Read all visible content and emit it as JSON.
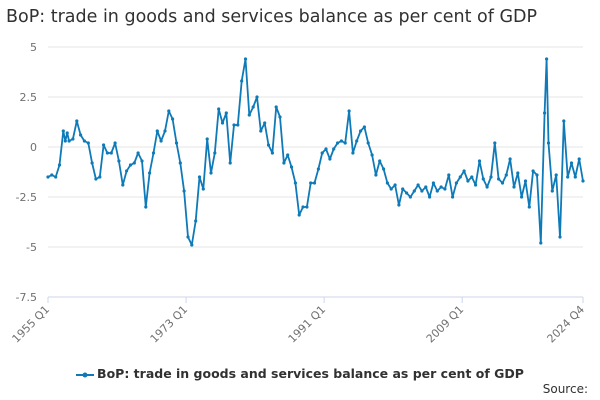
{
  "chart_data": {
    "type": "line",
    "title": "BoP: trade in goods and services balance as per cent of GDP",
    "xlabel": "",
    "ylabel": "",
    "ylim": [
      -7.5,
      5
    ],
    "yticks": [
      -7.5,
      -5,
      -2.5,
      0,
      2.5,
      5
    ],
    "ytick_labels": [
      "-7.5",
      "-5",
      "-2.5",
      "0",
      "2.5",
      "5"
    ],
    "x_start_quarter": "1955 Q1",
    "x_end_quarter": "2024 Q4",
    "xticks": [
      "1955 Q1",
      "1973 Q1",
      "1991 Q1",
      "2009 Q1",
      "2024 Q4"
    ],
    "grid": true,
    "legend_position": "bottom",
    "series": [
      {
        "name": "BoP: trade in goods and services balance as per cent of GDP",
        "color": "#0f7ab8",
        "anchors": [
          [
            "1955 Q1",
            -1.5
          ],
          [
            "1955 Q3",
            -1.4
          ],
          [
            "1956 Q1",
            -1.5
          ],
          [
            "1956 Q3",
            -0.9
          ],
          [
            "1957 Q1",
            0.8
          ],
          [
            "1957 Q2",
            0.3
          ],
          [
            "1957 Q3",
            0.7
          ],
          [
            "1957 Q4",
            0.3
          ],
          [
            "1958 Q2",
            0.4
          ],
          [
            "1958 Q4",
            1.3
          ],
          [
            "1959 Q2",
            0.6
          ],
          [
            "1959 Q4",
            0.3
          ],
          [
            "1960 Q2",
            0.2
          ],
          [
            "1960 Q4",
            -0.8
          ],
          [
            "1961 Q2",
            -1.6
          ],
          [
            "1961 Q4",
            -1.5
          ],
          [
            "1962 Q2",
            0.1
          ],
          [
            "1962 Q4",
            -0.3
          ],
          [
            "1963 Q2",
            -0.3
          ],
          [
            "1963 Q4",
            0.2
          ],
          [
            "1964 Q2",
            -0.7
          ],
          [
            "1964 Q4",
            -1.9
          ],
          [
            "1965 Q2",
            -1.2
          ],
          [
            "1965 Q4",
            -0.9
          ],
          [
            "1966 Q2",
            -0.8
          ],
          [
            "1966 Q4",
            -0.3
          ],
          [
            "1967 Q2",
            -0.7
          ],
          [
            "1967 Q4",
            -3.0
          ],
          [
            "1968 Q2",
            -1.3
          ],
          [
            "1968 Q4",
            -0.3
          ],
          [
            "1969 Q2",
            0.8
          ],
          [
            "1969 Q4",
            0.3
          ],
          [
            "1970 Q2",
            0.8
          ],
          [
            "1970 Q4",
            1.8
          ],
          [
            "1971 Q2",
            1.4
          ],
          [
            "1971 Q4",
            0.2
          ],
          [
            "1972 Q2",
            -0.8
          ],
          [
            "1972 Q4",
            -2.2
          ],
          [
            "1973 Q2",
            -4.5
          ],
          [
            "1973 Q4",
            -4.9
          ],
          [
            "1974 Q2",
            -3.7
          ],
          [
            "1974 Q4",
            -1.5
          ],
          [
            "1975 Q2",
            -2.1
          ],
          [
            "1975 Q4",
            0.4
          ],
          [
            "1976 Q2",
            -1.3
          ],
          [
            "1976 Q4",
            -0.3
          ],
          [
            "1977 Q2",
            1.9
          ],
          [
            "1977 Q4",
            1.2
          ],
          [
            "1978 Q2",
            1.7
          ],
          [
            "1978 Q4",
            -0.8
          ],
          [
            "1979 Q2",
            1.1
          ],
          [
            "1979 Q4",
            1.1
          ],
          [
            "1980 Q2",
            3.3
          ],
          [
            "1980 Q4",
            4.4
          ],
          [
            "1981 Q2",
            1.6
          ],
          [
            "1981 Q4",
            2.0
          ],
          [
            "1982 Q2",
            2.5
          ],
          [
            "1982 Q4",
            0.8
          ],
          [
            "1983 Q2",
            1.2
          ],
          [
            "1983 Q4",
            0.1
          ],
          [
            "1984 Q2",
            -0.3
          ],
          [
            "1984 Q4",
            2.0
          ],
          [
            "1985 Q2",
            1.5
          ],
          [
            "1985 Q4",
            -0.8
          ],
          [
            "1986 Q2",
            -0.4
          ],
          [
            "1986 Q4",
            -1.0
          ],
          [
            "1987 Q2",
            -1.8
          ],
          [
            "1987 Q4",
            -3.4
          ],
          [
            "1988 Q2",
            -3.0
          ],
          [
            "1988 Q4",
            -3.0
          ],
          [
            "1989 Q2",
            -1.8
          ],
          [
            "1989 Q4",
            -1.8
          ],
          [
            "1990 Q2",
            -1.1
          ],
          [
            "1990 Q4",
            -0.3
          ],
          [
            "1991 Q2",
            -0.1
          ],
          [
            "1991 Q4",
            -0.6
          ],
          [
            "1992 Q2",
            -0.1
          ],
          [
            "1992 Q4",
            0.2
          ],
          [
            "1993 Q2",
            0.3
          ],
          [
            "1993 Q4",
            0.2
          ],
          [
            "1994 Q2",
            1.8
          ],
          [
            "1994 Q4",
            -0.3
          ],
          [
            "1995 Q2",
            0.3
          ],
          [
            "1995 Q4",
            0.8
          ],
          [
            "1996 Q2",
            1.0
          ],
          [
            "1996 Q4",
            0.2
          ],
          [
            "1997 Q2",
            -0.4
          ],
          [
            "1997 Q4",
            -1.4
          ],
          [
            "1998 Q2",
            -0.7
          ],
          [
            "1998 Q4",
            -1.1
          ],
          [
            "1999 Q2",
            -1.8
          ],
          [
            "1999 Q4",
            -2.1
          ],
          [
            "2000 Q2",
            -1.9
          ],
          [
            "2000 Q4",
            -2.9
          ],
          [
            "2001 Q2",
            -2.1
          ],
          [
            "2001 Q4",
            -2.3
          ],
          [
            "2002 Q2",
            -2.5
          ],
          [
            "2002 Q4",
            -2.2
          ],
          [
            "2003 Q2",
            -1.9
          ],
          [
            "2003 Q4",
            -2.2
          ],
          [
            "2004 Q2",
            -2.0
          ],
          [
            "2004 Q4",
            -2.5
          ],
          [
            "2005 Q2",
            -1.8
          ],
          [
            "2005 Q4",
            -2.2
          ],
          [
            "2006 Q2",
            -2.0
          ],
          [
            "2006 Q4",
            -2.1
          ],
          [
            "2007 Q2",
            -1.4
          ],
          [
            "2007 Q4",
            -2.5
          ],
          [
            "2008 Q2",
            -1.8
          ],
          [
            "2008 Q4",
            -1.5
          ],
          [
            "2009 Q2",
            -1.2
          ],
          [
            "2009 Q4",
            -1.7
          ],
          [
            "2010 Q2",
            -1.5
          ],
          [
            "2010 Q4",
            -1.9
          ],
          [
            "2011 Q2",
            -0.7
          ],
          [
            "2011 Q4",
            -1.6
          ],
          [
            "2012 Q2",
            -2.0
          ],
          [
            "2012 Q4",
            -1.5
          ],
          [
            "2013 Q2",
            0.2
          ],
          [
            "2013 Q4",
            -1.6
          ],
          [
            "2014 Q2",
            -1.8
          ],
          [
            "2014 Q4",
            -1.4
          ],
          [
            "2015 Q2",
            -0.6
          ],
          [
            "2015 Q4",
            -2.0
          ],
          [
            "2016 Q2",
            -1.3
          ],
          [
            "2016 Q4",
            -2.5
          ],
          [
            "2017 Q2",
            -1.7
          ],
          [
            "2017 Q4",
            -3.0
          ],
          [
            "2018 Q2",
            -1.2
          ],
          [
            "2018 Q4",
            -1.4
          ],
          [
            "2019 Q2",
            -4.8
          ],
          [
            "2019 Q4",
            1.7
          ],
          [
            "2020 Q1",
            4.4
          ],
          [
            "2020 Q2",
            0.2
          ],
          [
            "2020 Q4",
            -2.2
          ],
          [
            "2021 Q2",
            -1.4
          ],
          [
            "2021 Q4",
            -4.5
          ],
          [
            "2022 Q2",
            1.3
          ],
          [
            "2022 Q4",
            -1.5
          ],
          [
            "2023 Q2",
            -0.8
          ],
          [
            "2023 Q4",
            -1.5
          ],
          [
            "2024 Q2",
            -0.6
          ],
          [
            "2024 Q4",
            -1.7
          ]
        ]
      }
    ]
  },
  "source_label": "Source:"
}
